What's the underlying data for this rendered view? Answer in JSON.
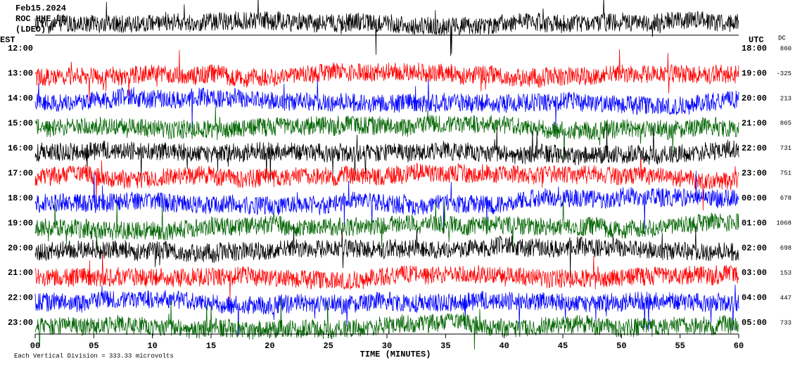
{
  "header": {
    "date": "Feb15.2024",
    "station": "ROC HHE LD",
    "network": "(LDEO)"
  },
  "chart_data": {
    "type": "helicorder",
    "left_axis_label": "EST",
    "right_axis_label": "UTC",
    "dc_label": "DC",
    "rows": [
      {
        "est": "12:00",
        "utc": "18:00",
        "dc": 860,
        "color": "#000000"
      },
      {
        "est": "13:00",
        "utc": "19:00",
        "dc": -325,
        "color": "#ff0000"
      },
      {
        "est": "14:00",
        "utc": "20:00",
        "dc": 213,
        "color": "#0000ff"
      },
      {
        "est": "15:00",
        "utc": "21:00",
        "dc": 865,
        "color": "#006400"
      },
      {
        "est": "16:00",
        "utc": "22:00",
        "dc": 731,
        "color": "#000000"
      },
      {
        "est": "17:00",
        "utc": "23:00",
        "dc": 751,
        "color": "#ff0000"
      },
      {
        "est": "18:00",
        "utc": "00:00",
        "dc": 678,
        "color": "#0000ff"
      },
      {
        "est": "19:00",
        "utc": "01:00",
        "dc": 1068,
        "color": "#006400"
      },
      {
        "est": "20:00",
        "utc": "02:00",
        "dc": 698,
        "color": "#000000"
      },
      {
        "est": "21:00",
        "utc": "03:00",
        "dc": 153,
        "color": "#ff0000"
      },
      {
        "est": "22:00",
        "utc": "04:00",
        "dc": 447,
        "color": "#0000ff"
      },
      {
        "est": "23:00",
        "utc": "05:00",
        "dc": 733,
        "color": "#006400"
      }
    ],
    "xlabel": "TIME (MINUTES)",
    "xlim": [
      0,
      60
    ],
    "xticks": [
      {
        "value": 0,
        "label": "00"
      },
      {
        "value": 5,
        "label": "05"
      },
      10,
      15,
      20,
      25,
      30,
      35,
      40,
      45,
      50,
      55,
      60
    ],
    "footer": "Each Vertical Division =  333.33 microvolts"
  }
}
